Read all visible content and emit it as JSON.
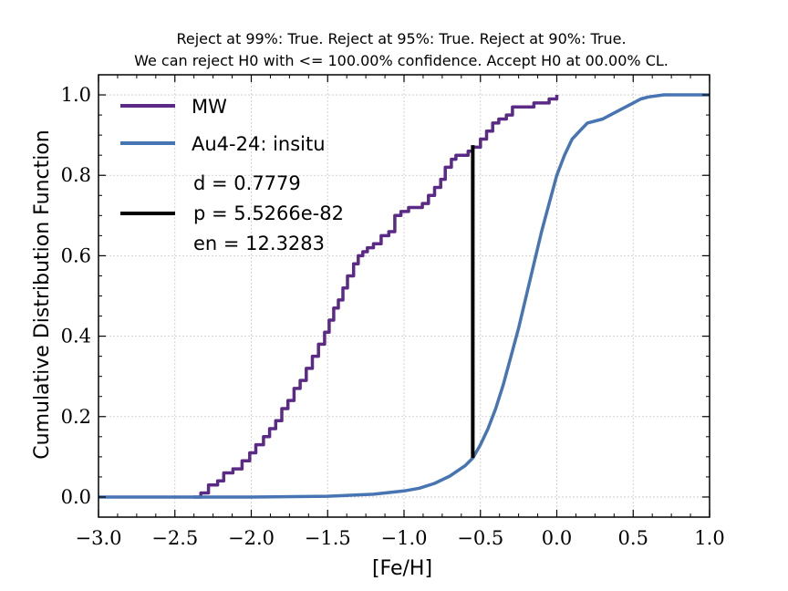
{
  "chart_data": {
    "type": "line",
    "title_line1": "Reject at 99%: True. Reject at 95%: True. Reject at 90%: True.",
    "title_line2": "We can reject H0 with <= 100.00% confidence. Accept H0 at 00.00% CL.",
    "xlabel": "[Fe/H]",
    "ylabel": "Cumulative Distribution Function",
    "xlim": [
      -3.0,
      1.0
    ],
    "ylim": [
      -0.05,
      1.05
    ],
    "xticks": [
      -3.0,
      -2.5,
      -2.0,
      -1.5,
      -1.0,
      -0.5,
      0.0,
      0.5,
      1.0
    ],
    "xtick_labels": [
      "−3.0",
      "−2.5",
      "−2.0",
      "−1.5",
      "−1.0",
      "−0.5",
      "0.0",
      "0.5",
      "1.0"
    ],
    "yticks": [
      0.0,
      0.2,
      0.4,
      0.6,
      0.8,
      1.0
    ],
    "ytick_labels": [
      "0.0",
      "0.2",
      "0.4",
      "0.6",
      "0.8",
      "1.0"
    ],
    "grid": true,
    "legend_position": "top-left",
    "series": [
      {
        "name": "MW",
        "color": "#5b2a86",
        "step": true,
        "x": [
          -2.38,
          -2.33,
          -2.28,
          -2.22,
          -2.18,
          -2.12,
          -2.06,
          -2.01,
          -1.97,
          -1.92,
          -1.88,
          -1.84,
          -1.8,
          -1.76,
          -1.72,
          -1.68,
          -1.64,
          -1.6,
          -1.56,
          -1.52,
          -1.49,
          -1.46,
          -1.43,
          -1.4,
          -1.37,
          -1.33,
          -1.3,
          -1.27,
          -1.24,
          -1.2,
          -1.15,
          -1.1,
          -1.06,
          -1.02,
          -1.0,
          -0.97,
          -0.93,
          -0.88,
          -0.84,
          -0.8,
          -0.76,
          -0.73,
          -0.69,
          -0.66,
          -0.62,
          -0.58,
          -0.55,
          -0.5,
          -0.46,
          -0.42,
          -0.38,
          -0.33,
          -0.29,
          -0.25,
          -0.2,
          -0.15,
          -0.1,
          -0.05,
          0.0
        ],
        "y": [
          0.0,
          0.01,
          0.03,
          0.04,
          0.06,
          0.07,
          0.09,
          0.11,
          0.13,
          0.15,
          0.17,
          0.19,
          0.22,
          0.24,
          0.27,
          0.29,
          0.32,
          0.35,
          0.38,
          0.41,
          0.44,
          0.47,
          0.49,
          0.52,
          0.55,
          0.58,
          0.6,
          0.61,
          0.62,
          0.63,
          0.65,
          0.66,
          0.7,
          0.71,
          0.71,
          0.72,
          0.72,
          0.73,
          0.75,
          0.77,
          0.79,
          0.82,
          0.84,
          0.85,
          0.85,
          0.86,
          0.87,
          0.89,
          0.91,
          0.93,
          0.94,
          0.95,
          0.97,
          0.97,
          0.97,
          0.98,
          0.98,
          0.99,
          1.0
        ]
      },
      {
        "name": "Au4-24:  insitu",
        "color": "#4774b2",
        "step": false,
        "x": [
          -3.0,
          -2.0,
          -1.5,
          -1.2,
          -1.0,
          -0.9,
          -0.8,
          -0.7,
          -0.6,
          -0.55,
          -0.5,
          -0.45,
          -0.4,
          -0.35,
          -0.3,
          -0.25,
          -0.2,
          -0.15,
          -0.1,
          -0.05,
          0.0,
          0.05,
          0.1,
          0.15,
          0.2,
          0.3,
          0.4,
          0.5,
          0.55,
          0.6,
          0.7,
          0.8,
          0.9,
          1.0
        ],
        "y": [
          0.0,
          0.0,
          0.002,
          0.007,
          0.015,
          0.022,
          0.034,
          0.052,
          0.078,
          0.097,
          0.13,
          0.17,
          0.22,
          0.28,
          0.35,
          0.42,
          0.5,
          0.58,
          0.66,
          0.73,
          0.8,
          0.85,
          0.89,
          0.91,
          0.93,
          0.94,
          0.96,
          0.98,
          0.99,
          0.995,
          1.0,
          1.0,
          1.0,
          1.0
        ]
      }
    ],
    "ks_segment": {
      "color": "#000000",
      "x": -0.55,
      "y_low": 0.097,
      "y_high": 0.875
    },
    "legend_stats": [
      "d = 0.7779",
      "p = 5.5266e-82",
      "en = 12.3283"
    ]
  }
}
